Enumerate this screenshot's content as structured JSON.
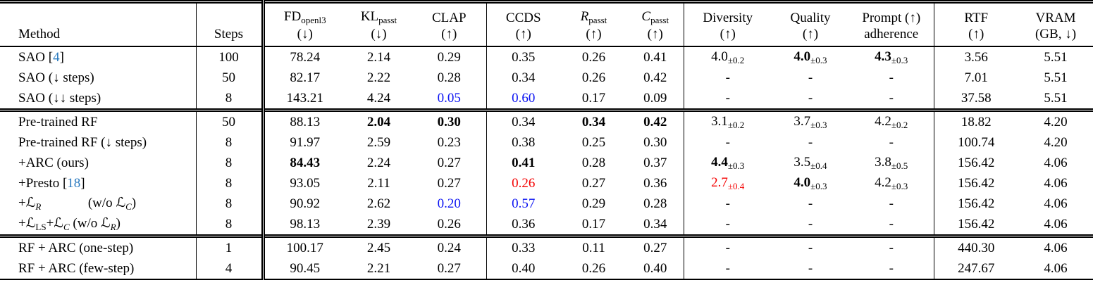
{
  "colors": {
    "cite_blue": "#2878be",
    "value_blue": "#0a12f2",
    "value_red": "#f40000"
  },
  "table": {
    "columns": [
      {
        "id": "method",
        "line1": [
          {
            "t": "Method"
          }
        ],
        "line2": ""
      },
      {
        "id": "steps",
        "line1": [
          {
            "t": "Steps"
          }
        ],
        "line2": ""
      },
      {
        "id": "fd",
        "line1": [
          {
            "t": "FD"
          },
          {
            "t": "openl3",
            "s": "sub"
          }
        ],
        "line2": "(↓)"
      },
      {
        "id": "kl",
        "line1": [
          {
            "t": "KL"
          },
          {
            "t": "passt",
            "s": "sub"
          }
        ],
        "line2": "(↓)"
      },
      {
        "id": "clap",
        "line1": [
          {
            "t": "CLAP"
          }
        ],
        "line2": "(↑)"
      },
      {
        "id": "ccds",
        "line1": [
          {
            "t": "CCDS"
          }
        ],
        "line2": "(↑)"
      },
      {
        "id": "rpasst",
        "line1": [
          {
            "t": "R",
            "s": "it"
          },
          {
            "t": "passt",
            "s": "sub"
          }
        ],
        "line2": "(↑)"
      },
      {
        "id": "cpasst",
        "line1": [
          {
            "t": "C",
            "s": "it"
          },
          {
            "t": "passt",
            "s": "sub"
          }
        ],
        "line2": "(↑)"
      },
      {
        "id": "diversity",
        "line1": [
          {
            "t": "Diversity"
          }
        ],
        "line2": "(↑)"
      },
      {
        "id": "quality",
        "line1": [
          {
            "t": "Quality"
          }
        ],
        "line2": "(↑)"
      },
      {
        "id": "prompt",
        "line1": [
          {
            "t": "Prompt (↑)"
          }
        ],
        "line2": "adherence"
      },
      {
        "id": "rtf",
        "line1": [
          {
            "t": "RTF"
          }
        ],
        "line2": "(↑)"
      },
      {
        "id": "vram",
        "line1": [
          {
            "t": "VRAM"
          }
        ],
        "line2": "(GB, ↓)"
      }
    ],
    "groups": [
      {
        "rows": [
          {
            "method": [
              {
                "t": "SAO ["
              },
              {
                "t": "4",
                "s": "cite"
              },
              {
                "t": "]"
              }
            ],
            "cells": [
              {
                "v": "100"
              },
              {
                "v": "78.24"
              },
              {
                "v": "2.14"
              },
              {
                "v": "0.29"
              },
              {
                "v": "0.35"
              },
              {
                "v": "0.26"
              },
              {
                "v": "0.41"
              },
              {
                "v": "4.0",
                "sub": "±0.2"
              },
              {
                "v": "4.0",
                "sub": "±0.3",
                "b": true
              },
              {
                "v": "4.3",
                "sub": "±0.3",
                "b": true
              },
              {
                "v": "3.56"
              },
              {
                "v": "5.51"
              }
            ]
          },
          {
            "method": [
              {
                "t": "SAO (↓ steps)"
              }
            ],
            "cells": [
              {
                "v": "50"
              },
              {
                "v": "82.17"
              },
              {
                "v": "2.22"
              },
              {
                "v": "0.28"
              },
              {
                "v": "0.34"
              },
              {
                "v": "0.26"
              },
              {
                "v": "0.42"
              },
              {
                "v": "-"
              },
              {
                "v": "-"
              },
              {
                "v": "-"
              },
              {
                "v": "7.01"
              },
              {
                "v": "5.51"
              }
            ]
          },
          {
            "method": [
              {
                "t": "SAO (↓↓ steps)"
              }
            ],
            "cells": [
              {
                "v": "8"
              },
              {
                "v": "143.21"
              },
              {
                "v": "4.24"
              },
              {
                "v": "0.05",
                "c": "blue"
              },
              {
                "v": "0.60",
                "c": "blue"
              },
              {
                "v": "0.17"
              },
              {
                "v": "0.09"
              },
              {
                "v": "-"
              },
              {
                "v": "-"
              },
              {
                "v": "-"
              },
              {
                "v": "37.58"
              },
              {
                "v": "5.51"
              }
            ]
          }
        ]
      },
      {
        "rows": [
          {
            "method": [
              {
                "t": "Pre-trained RF"
              }
            ],
            "cells": [
              {
                "v": "50"
              },
              {
                "v": "88.13"
              },
              {
                "v": "2.04",
                "b": true
              },
              {
                "v": "0.30",
                "b": true
              },
              {
                "v": "0.34"
              },
              {
                "v": "0.34",
                "b": true
              },
              {
                "v": "0.42",
                "b": true
              },
              {
                "v": "3.1",
                "sub": "±0.2"
              },
              {
                "v": "3.7",
                "sub": "±0.3"
              },
              {
                "v": "4.2",
                "sub": "±0.2"
              },
              {
                "v": "18.82"
              },
              {
                "v": "4.20"
              }
            ]
          },
          {
            "method": [
              {
                "t": "Pre-trained RF (↓ steps)"
              }
            ],
            "cells": [
              {
                "v": "8"
              },
              {
                "v": "91.97"
              },
              {
                "v": "2.59"
              },
              {
                "v": "0.23"
              },
              {
                "v": "0.38"
              },
              {
                "v": "0.25"
              },
              {
                "v": "0.30"
              },
              {
                "v": "-"
              },
              {
                "v": "-"
              },
              {
                "v": "-"
              },
              {
                "v": "100.74"
              },
              {
                "v": "4.20"
              }
            ]
          },
          {
            "method": [
              {
                "t": "+ARC (ours)"
              }
            ],
            "cells": [
              {
                "v": "8"
              },
              {
                "v": "84.43",
                "b": true
              },
              {
                "v": "2.24"
              },
              {
                "v": "0.27"
              },
              {
                "v": "0.41",
                "b": true
              },
              {
                "v": "0.28"
              },
              {
                "v": "0.37"
              },
              {
                "v": "4.4",
                "sub": "±0.3",
                "b": true
              },
              {
                "v": "3.5",
                "sub": "±0.4"
              },
              {
                "v": "3.8",
                "sub": "±0.5"
              },
              {
                "v": "156.42"
              },
              {
                "v": "4.06"
              }
            ]
          },
          {
            "method": [
              {
                "t": "+Presto ["
              },
              {
                "t": "18",
                "s": "cite"
              },
              {
                "t": "]"
              }
            ],
            "cells": [
              {
                "v": "8"
              },
              {
                "v": "93.05"
              },
              {
                "v": "2.11"
              },
              {
                "v": "0.27"
              },
              {
                "v": "0.26",
                "c": "red"
              },
              {
                "v": "0.27"
              },
              {
                "v": "0.36"
              },
              {
                "v": "2.7",
                "sub": "±0.4",
                "c": "red"
              },
              {
                "v": "4.0",
                "sub": "±0.3",
                "b": true
              },
              {
                "v": "4.2",
                "sub": "±0.3"
              },
              {
                "v": "156.42"
              },
              {
                "v": "4.06"
              }
            ]
          },
          {
            "method": [
              {
                "t": "+"
              },
              {
                "t": "ℒ",
                "s": "m"
              },
              {
                "t": "R",
                "s": "msub"
              },
              {
                "t": "    (w/o "
              },
              {
                "t": "ℒ",
                "s": "m"
              },
              {
                "t": "C",
                "s": "msub"
              },
              {
                "t": ")"
              }
            ],
            "cells": [
              {
                "v": "8"
              },
              {
                "v": "90.92"
              },
              {
                "v": "2.62"
              },
              {
                "v": "0.20",
                "c": "blue"
              },
              {
                "v": "0.57",
                "c": "blue"
              },
              {
                "v": "0.29"
              },
              {
                "v": "0.28"
              },
              {
                "v": "-"
              },
              {
                "v": "-"
              },
              {
                "v": "-"
              },
              {
                "v": "156.42"
              },
              {
                "v": "4.06"
              }
            ]
          },
          {
            "method": [
              {
                "t": "+"
              },
              {
                "t": "ℒ",
                "s": "m"
              },
              {
                "t": "LS",
                "s": "sub"
              },
              {
                "t": "+"
              },
              {
                "t": "ℒ",
                "s": "m"
              },
              {
                "t": "C",
                "s": "msub"
              },
              {
                "t": " (w/o "
              },
              {
                "t": "ℒ",
                "s": "m"
              },
              {
                "t": "R",
                "s": "msub"
              },
              {
                "t": ")"
              }
            ],
            "cells": [
              {
                "v": "8"
              },
              {
                "v": "98.13"
              },
              {
                "v": "2.39"
              },
              {
                "v": "0.26"
              },
              {
                "v": "0.36"
              },
              {
                "v": "0.17"
              },
              {
                "v": "0.34"
              },
              {
                "v": "-"
              },
              {
                "v": "-"
              },
              {
                "v": "-"
              },
              {
                "v": "156.42"
              },
              {
                "v": "4.06"
              }
            ]
          }
        ]
      },
      {
        "rows": [
          {
            "method": [
              {
                "t": "RF + ARC (one-step)"
              }
            ],
            "cells": [
              {
                "v": "1"
              },
              {
                "v": "100.17"
              },
              {
                "v": "2.45"
              },
              {
                "v": "0.24"
              },
              {
                "v": "0.33"
              },
              {
                "v": "0.11"
              },
              {
                "v": "0.27"
              },
              {
                "v": "-"
              },
              {
                "v": "-"
              },
              {
                "v": "-"
              },
              {
                "v": "440.30"
              },
              {
                "v": "4.06"
              }
            ]
          },
          {
            "method": [
              {
                "t": "RF + ARC (few-step)"
              }
            ],
            "cells": [
              {
                "v": "4"
              },
              {
                "v": "90.45"
              },
              {
                "v": "2.21"
              },
              {
                "v": "0.27"
              },
              {
                "v": "0.40"
              },
              {
                "v": "0.26"
              },
              {
                "v": "0.40"
              },
              {
                "v": "-"
              },
              {
                "v": "-"
              },
              {
                "v": "-"
              },
              {
                "v": "247.67"
              },
              {
                "v": "4.06"
              }
            ]
          }
        ]
      }
    ]
  }
}
